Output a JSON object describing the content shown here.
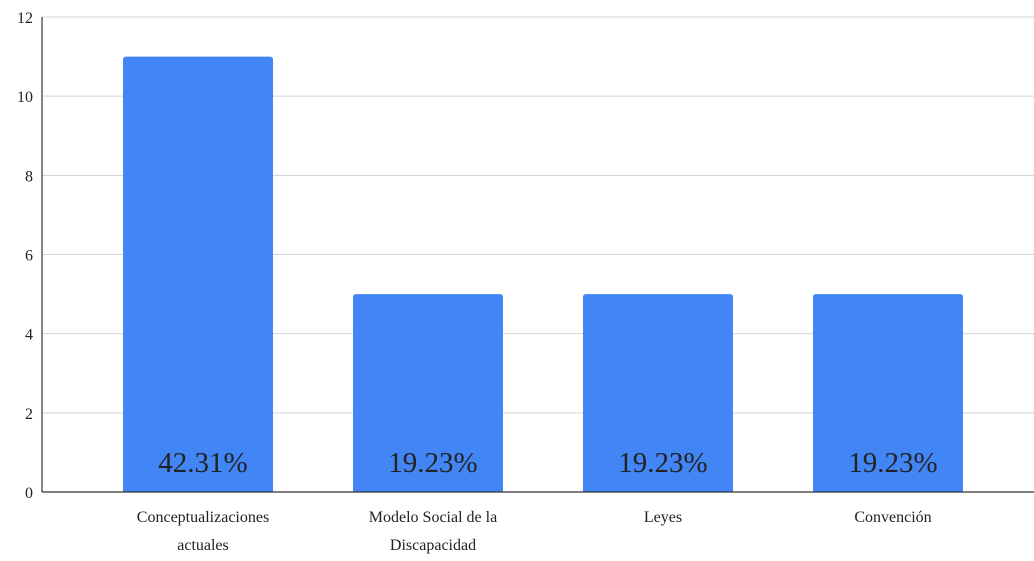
{
  "chart_data": {
    "type": "bar",
    "categories": [
      [
        "Conceptualizaciones",
        "actuales"
      ],
      [
        "Modelo Social de la",
        "Discapacidad"
      ],
      [
        "Leyes"
      ],
      [
        "Convención"
      ]
    ],
    "values": [
      11,
      5,
      5,
      5
    ],
    "data_labels": [
      "42.31%",
      "19.23%",
      "19.23%",
      "19.23%"
    ],
    "ylim": [
      0,
      12
    ],
    "yticks": [
      0,
      2,
      4,
      6,
      8,
      10,
      12
    ],
    "grid": true,
    "bar_color": "#4285f4",
    "title": "",
    "xlabel": "",
    "ylabel": ""
  }
}
